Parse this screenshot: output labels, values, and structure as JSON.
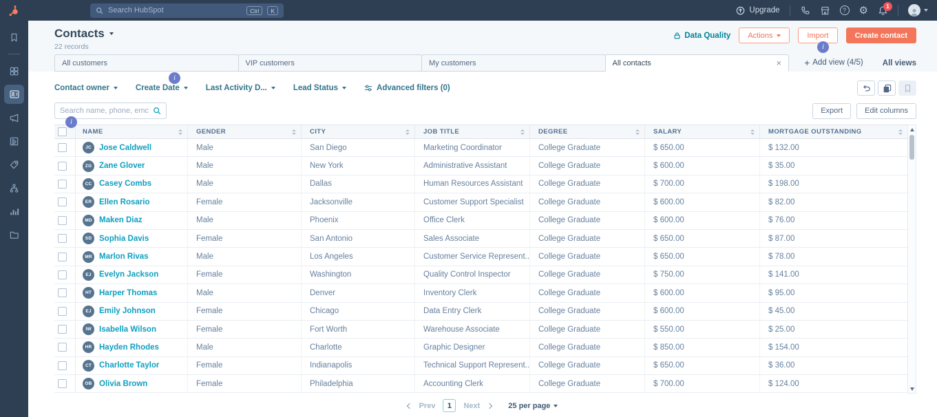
{
  "topbar": {
    "search_placeholder": "Search HubSpot",
    "shortcut": [
      "Ctrl",
      "K"
    ],
    "upgrade_label": "Upgrade",
    "notification_count": "1",
    "icon_names": [
      "phone-icon",
      "marketplace-icon",
      "help-icon",
      "settings-icon",
      "notifications-icon",
      "user-avatar"
    ]
  },
  "icons": {
    "help_glyph": "?",
    "settings_glyph": "⚙",
    "plus_glyph": "+",
    "close_glyph": "×",
    "info_glyph": "i"
  },
  "sidebar": {
    "item_names": [
      "bookmarks",
      "navigation-grid",
      "crm-contacts",
      "marketing",
      "content",
      "commerce",
      "automations",
      "reporting",
      "library"
    ],
    "active_item": "crm-contacts"
  },
  "header": {
    "title": "Contacts",
    "records": "22 records",
    "data_quality_label": "Data Quality",
    "actions_label": "Actions",
    "import_label": "Import",
    "create_contact_label": "Create contact"
  },
  "views": {
    "tabs": [
      {
        "label": "All customers",
        "active": false
      },
      {
        "label": "VIP customers",
        "active": false
      },
      {
        "label": "My customers",
        "active": false
      },
      {
        "label": "All contacts",
        "active": true
      }
    ],
    "add_view_label": "Add view (4/5)",
    "all_views_label": "All views"
  },
  "filters": {
    "items": [
      "Contact owner",
      "Create Date",
      "Last Activity D...",
      "Lead Status"
    ],
    "advanced_label": "Advanced filters (0)"
  },
  "toolbar": {
    "search_placeholder": "Search name, phone, emc",
    "export_label": "Export",
    "edit_columns_label": "Edit columns"
  },
  "table": {
    "columns": [
      "NAME",
      "GENDER",
      "CITY",
      "JOB TITLE",
      "DEGREE",
      "SALARY",
      "MORTGAGE OUTSTANDING"
    ],
    "rows": [
      {
        "initials": "JC",
        "name": "Jose Caldwell",
        "gender": "Male",
        "city": "San Diego",
        "job_title": "Marketing Coordinator",
        "degree": "College Graduate",
        "salary": "$ 650.00",
        "mortgage": "$ 132.00"
      },
      {
        "initials": "ZG",
        "name": "Zane Glover",
        "gender": "Male",
        "city": "New York",
        "job_title": "Administrative Assistant",
        "degree": "College Graduate",
        "salary": "$ 600.00",
        "mortgage": "$ 35.00"
      },
      {
        "initials": "CC",
        "name": "Casey Combs",
        "gender": "Male",
        "city": "Dallas",
        "job_title": "Human Resources Assistant",
        "degree": "College Graduate",
        "salary": "$ 700.00",
        "mortgage": "$ 198.00"
      },
      {
        "initials": "ER",
        "name": "Ellen Rosario",
        "gender": "Female",
        "city": "Jacksonville",
        "job_title": "Customer Support Specialist",
        "degree": "College Graduate",
        "salary": "$ 600.00",
        "mortgage": "$ 82.00"
      },
      {
        "initials": "MD",
        "name": "Maken Diaz",
        "gender": "Male",
        "city": "Phoenix",
        "job_title": "Office Clerk",
        "degree": "College Graduate",
        "salary": "$ 600.00",
        "mortgage": "$ 76.00"
      },
      {
        "initials": "SD",
        "name": "Sophia Davis",
        "gender": "Female",
        "city": "San Antonio",
        "job_title": "Sales Associate",
        "degree": "College Graduate",
        "salary": "$ 650.00",
        "mortgage": "$ 87.00"
      },
      {
        "initials": "MR",
        "name": "Marlon Rivas",
        "gender": "Male",
        "city": "Los Angeles",
        "job_title": "Customer Service Represent...",
        "degree": "College Graduate",
        "salary": "$ 650.00",
        "mortgage": "$ 78.00"
      },
      {
        "initials": "EJ",
        "name": "Evelyn Jackson",
        "gender": "Female",
        "city": "Washington",
        "job_title": "Quality Control Inspector",
        "degree": "College Graduate",
        "salary": "$ 750.00",
        "mortgage": "$ 141.00"
      },
      {
        "initials": "HT",
        "name": "Harper Thomas",
        "gender": "Male",
        "city": "Denver",
        "job_title": "Inventory Clerk",
        "degree": "College Graduate",
        "salary": "$ 600.00",
        "mortgage": "$ 95.00"
      },
      {
        "initials": "EJ",
        "name": "Emily Johnson",
        "gender": "Female",
        "city": "Chicago",
        "job_title": "Data Entry Clerk",
        "degree": "College Graduate",
        "salary": "$ 600.00",
        "mortgage": "$ 45.00"
      },
      {
        "initials": "IW",
        "name": "Isabella Wilson",
        "gender": "Female",
        "city": "Fort Worth",
        "job_title": "Warehouse Associate",
        "degree": "College Graduate",
        "salary": "$ 550.00",
        "mortgage": "$ 25.00"
      },
      {
        "initials": "HR",
        "name": "Hayden Rhodes",
        "gender": "Male",
        "city": "Charlotte",
        "job_title": "Graphic Designer",
        "degree": "College Graduate",
        "salary": "$ 850.00",
        "mortgage": "$ 154.00"
      },
      {
        "initials": "CT",
        "name": "Charlotte Taylor",
        "gender": "Female",
        "city": "Indianapolis",
        "job_title": "Technical Support Represent...",
        "degree": "College Graduate",
        "salary": "$ 650.00",
        "mortgage": "$ 36.00"
      },
      {
        "initials": "OB",
        "name": "Olivia Brown",
        "gender": "Female",
        "city": "Philadelphia",
        "job_title": "Accounting Clerk",
        "degree": "College Graduate",
        "salary": "$ 700.00",
        "mortgage": "$ 124.00"
      }
    ]
  },
  "pagination": {
    "prev_label": "Prev",
    "current_page": "1",
    "next_label": "Next",
    "per_page_label": "25 per page"
  },
  "colors": {
    "topbar_bg": "#2e3f54",
    "brand_orange": "#f4765a",
    "link_teal": "#0e9fc0",
    "filter_teal": "#33758d",
    "data_quality_teal": "#00829b",
    "page_bg": "#f5f8fa",
    "border": "#cbd6e2",
    "info_badge_purple": "#6b7cca",
    "notification_red": "#f2545b",
    "avatar_slate": "#56748f"
  }
}
